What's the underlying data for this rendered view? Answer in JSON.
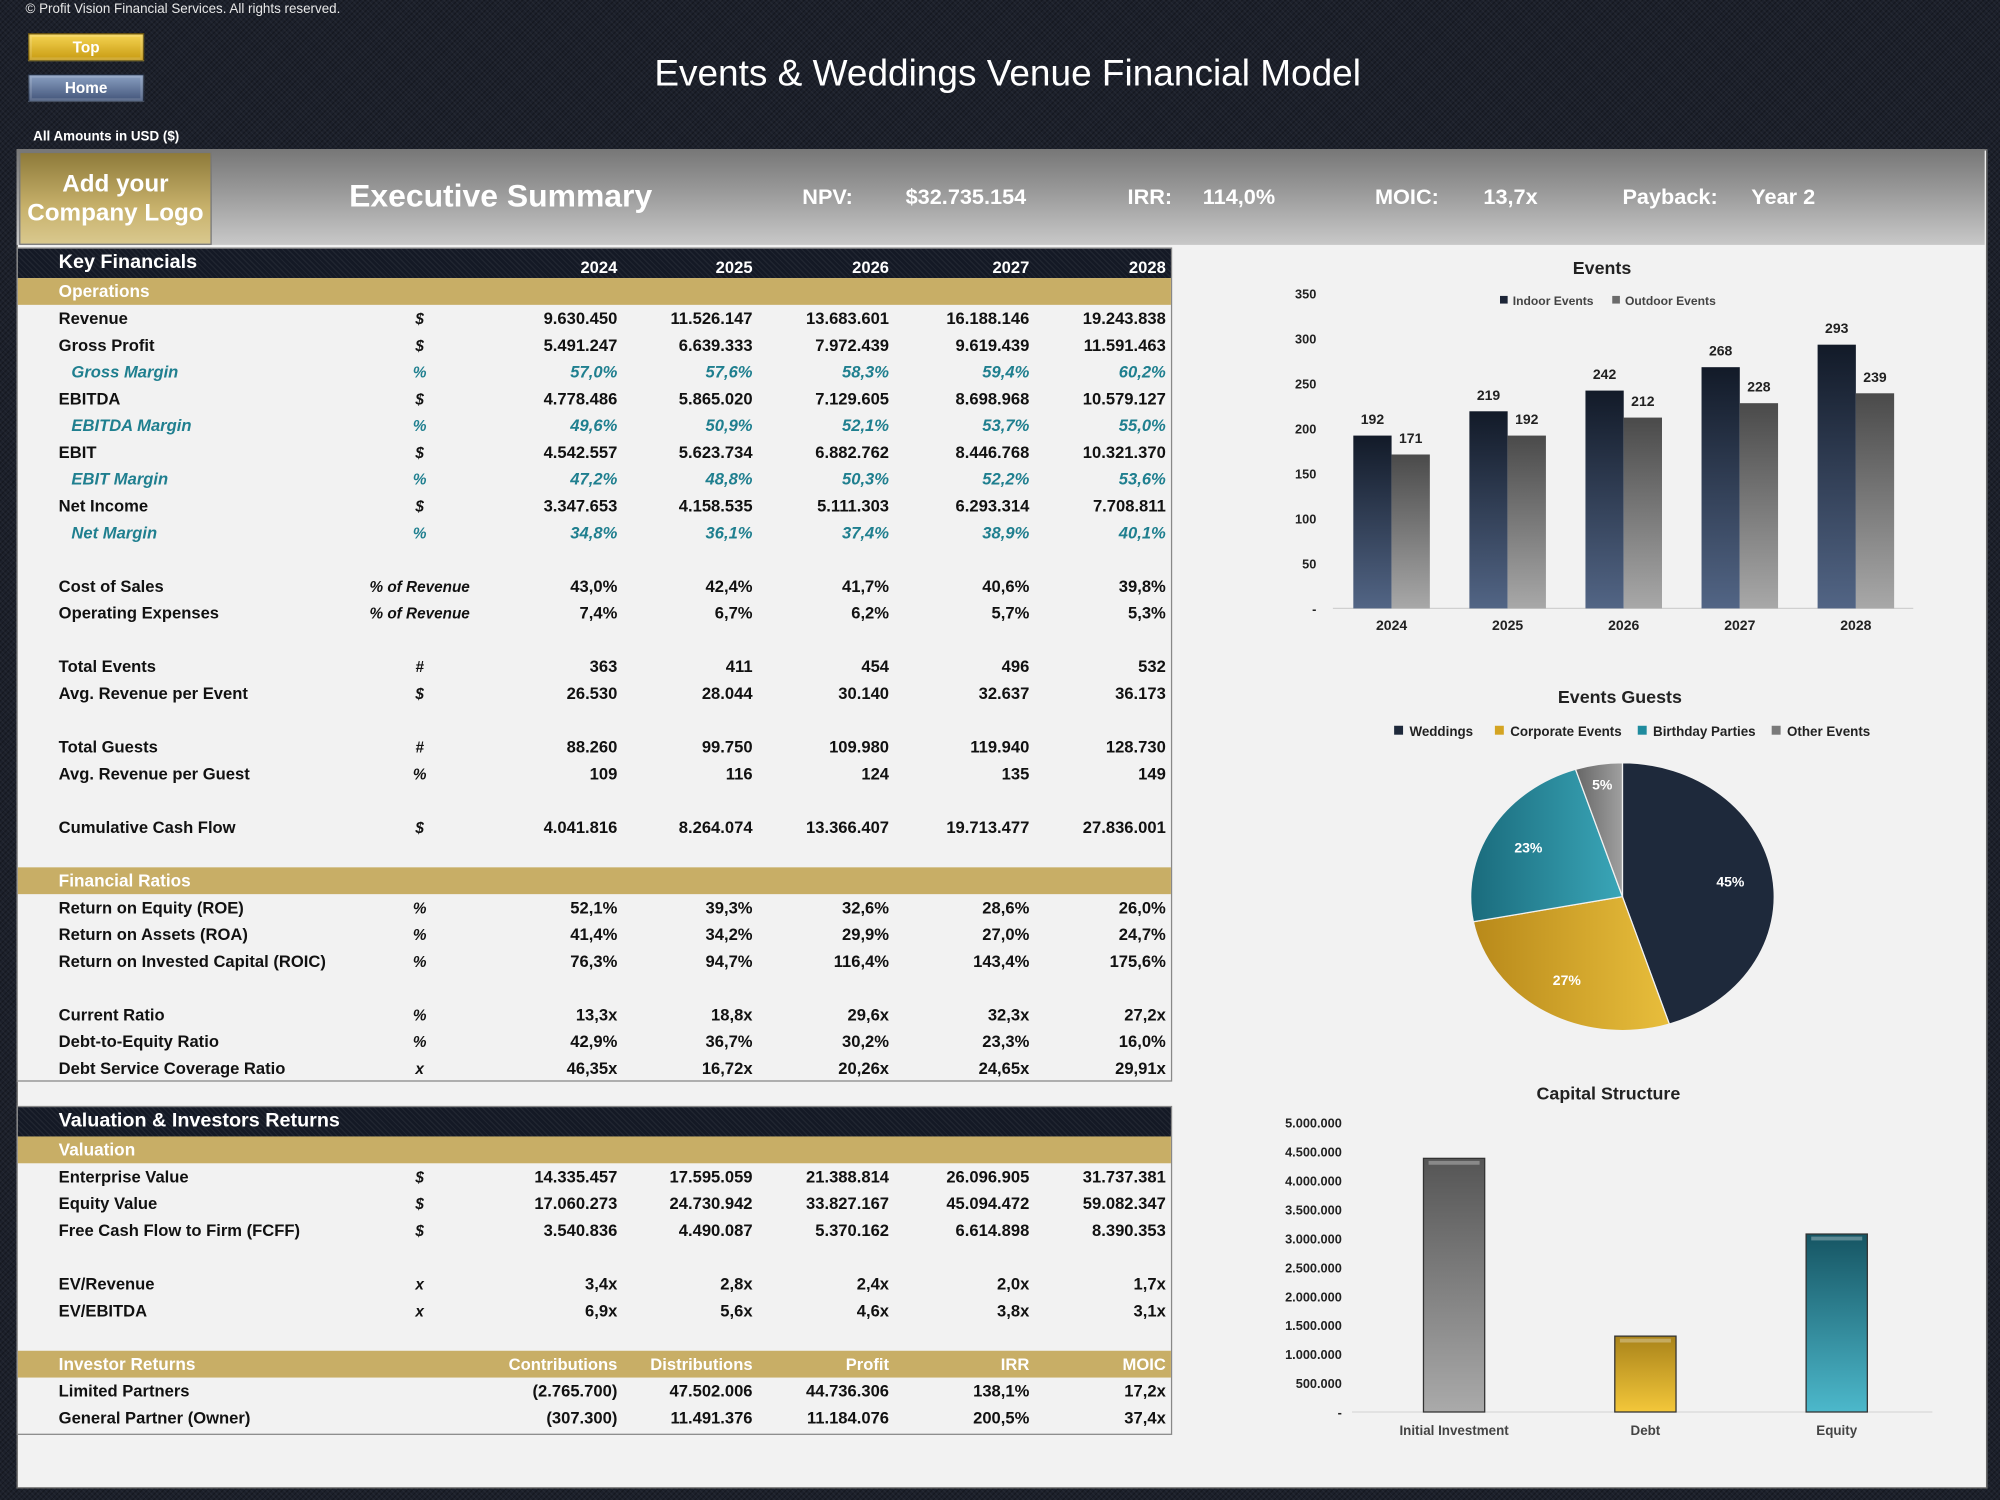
{
  "header": {
    "copyright": "© Profit Vision Financial Services. All rights reserved.",
    "title": "Events & Weddings Venue Financial Model",
    "currency_note": "All Amounts in  USD ($)",
    "buttons": {
      "top": "Top",
      "home": "Home"
    }
  },
  "banner": {
    "logo": "Add your Company Logo",
    "title": "Executive Summary",
    "metrics": [
      {
        "label": "NPV:",
        "value": "$32.735.154"
      },
      {
        "label": "IRR:",
        "value": "114,0%"
      },
      {
        "label": "MOIC:",
        "value": "13,7x"
      },
      {
        "label": "Payback:",
        "value": "Year 2"
      }
    ]
  },
  "key_financials": {
    "title": "Key Financials",
    "columns": [
      "2024",
      "2025",
      "2026",
      "2027",
      "2028"
    ],
    "sections": [
      {
        "title": "Operations",
        "groups": [
          [
            {
              "label": "Revenue",
              "unit": "$",
              "values": [
                "9.630.450",
                "11.526.147",
                "13.683.601",
                "16.188.146",
                "19.243.838"
              ]
            },
            {
              "label": "Gross Profit",
              "unit": "$",
              "values": [
                "5.491.247",
                "6.639.333",
                "7.972.439",
                "9.619.439",
                "11.591.463"
              ]
            },
            {
              "label": "Gross Margin",
              "unit": "%",
              "style": "margin",
              "values": [
                "57,0%",
                "57,6%",
                "58,3%",
                "59,4%",
                "60,2%"
              ]
            },
            {
              "label": "EBITDA",
              "unit": "$",
              "values": [
                "4.778.486",
                "5.865.020",
                "7.129.605",
                "8.698.968",
                "10.579.127"
              ]
            },
            {
              "label": "EBITDA Margin",
              "unit": "%",
              "style": "margin",
              "values": [
                "49,6%",
                "50,9%",
                "52,1%",
                "53,7%",
                "55,0%"
              ]
            },
            {
              "label": "EBIT",
              "unit": "$",
              "values": [
                "4.542.557",
                "5.623.734",
                "6.882.762",
                "8.446.768",
                "10.321.370"
              ]
            },
            {
              "label": "EBIT Margin",
              "unit": "%",
              "style": "margin",
              "values": [
                "47,2%",
                "48,8%",
                "50,3%",
                "52,2%",
                "53,6%"
              ]
            },
            {
              "label": "Net Income",
              "unit": "$",
              "values": [
                "3.347.653",
                "4.158.535",
                "5.111.303",
                "6.293.314",
                "7.708.811"
              ]
            },
            {
              "label": "Net Margin",
              "unit": "%",
              "style": "margin",
              "values": [
                "34,8%",
                "36,1%",
                "37,4%",
                "38,9%",
                "40,1%"
              ]
            }
          ],
          [
            {
              "label": "Cost of Sales",
              "unit": "% of Revenue",
              "values": [
                "43,0%",
                "42,4%",
                "41,7%",
                "40,6%",
                "39,8%"
              ]
            },
            {
              "label": "Operating Expenses",
              "unit": "% of Revenue",
              "values": [
                "7,4%",
                "6,7%",
                "6,2%",
                "5,7%",
                "5,3%"
              ]
            }
          ],
          [
            {
              "label": "Total Events",
              "unit": "#",
              "values": [
                "363",
                "411",
                "454",
                "496",
                "532"
              ]
            },
            {
              "label": "Avg. Revenue per Event",
              "unit": "$",
              "values": [
                "26.530",
                "28.044",
                "30.140",
                "32.637",
                "36.173"
              ]
            }
          ],
          [
            {
              "label": "Total Guests",
              "unit": "#",
              "values": [
                "88.260",
                "99.750",
                "109.980",
                "119.940",
                "128.730"
              ]
            },
            {
              "label": "Avg. Revenue per Guest",
              "unit": "%",
              "values": [
                "109",
                "116",
                "124",
                "135",
                "149"
              ]
            }
          ],
          [
            {
              "label": "Cumulative Cash Flow",
              "unit": "$",
              "values": [
                "4.041.816",
                "8.264.074",
                "13.366.407",
                "19.713.477",
                "27.836.001"
              ]
            }
          ]
        ]
      },
      {
        "title": "Financial Ratios",
        "groups": [
          [
            {
              "label": "Return on Equity (ROE)",
              "unit": "%",
              "values": [
                "52,1%",
                "39,3%",
                "32,6%",
                "28,6%",
                "26,0%"
              ]
            },
            {
              "label": "Return on Assets (ROA)",
              "unit": "%",
              "values": [
                "41,4%",
                "34,2%",
                "29,9%",
                "27,0%",
                "24,7%"
              ]
            },
            {
              "label": "Return on Invested Capital (ROIC)",
              "unit": "%",
              "values": [
                "76,3%",
                "94,7%",
                "116,4%",
                "143,4%",
                "175,6%"
              ]
            }
          ],
          [
            {
              "label": "Current Ratio",
              "unit": "%",
              "values": [
                "13,3x",
                "18,8x",
                "29,6x",
                "32,3x",
                "27,2x"
              ]
            },
            {
              "label": "Debt-to-Equity Ratio",
              "unit": "%",
              "values": [
                "42,9%",
                "36,7%",
                "30,2%",
                "23,3%",
                "16,0%"
              ]
            },
            {
              "label": "Debt Service Coverage Ratio",
              "unit": "x",
              "values": [
                "46,35x",
                "16,72x",
                "20,26x",
                "24,65x",
                "29,91x"
              ]
            }
          ]
        ]
      }
    ]
  },
  "valuation_panel": {
    "title": "Valuation & Investors Returns",
    "sections": [
      {
        "title": "Valuation",
        "groups": [
          [
            {
              "label": "Enterprise Value",
              "unit": "$",
              "values": [
                "14.335.457",
                "17.595.059",
                "21.388.814",
                "26.096.905",
                "31.737.381"
              ]
            },
            {
              "label": "Equity Value",
              "unit": "$",
              "values": [
                "17.060.273",
                "24.730.942",
                "33.827.167",
                "45.094.472",
                "59.082.347"
              ]
            },
            {
              "label": "Free Cash Flow to Firm (FCFF)",
              "unit": "$",
              "values": [
                "3.540.836",
                "4.490.087",
                "5.370.162",
                "6.614.898",
                "8.390.353"
              ]
            }
          ],
          [
            {
              "label": "EV/Revenue",
              "unit": "x",
              "values": [
                "3,4x",
                "2,8x",
                "2,4x",
                "2,0x",
                "1,7x"
              ]
            },
            {
              "label": "EV/EBITDA",
              "unit": "x",
              "values": [
                "6,9x",
                "5,6x",
                "4,6x",
                "3,8x",
                "3,1x"
              ]
            }
          ]
        ]
      },
      {
        "title": "Investor Returns",
        "columns": [
          "Contributions",
          "Distributions",
          "Profit",
          "IRR",
          "MOIC"
        ],
        "groups": [
          [
            {
              "label": "Limited Partners",
              "unit": "",
              "values": [
                "(2.765.700)",
                "47.502.006",
                "44.736.306",
                "138,1%",
                "17,2x"
              ]
            },
            {
              "label": "General Partner (Owner)",
              "unit": "",
              "values": [
                "(307.300)",
                "11.491.376",
                "11.184.076",
                "200,5%",
                "37,4x"
              ]
            }
          ]
        ]
      }
    ]
  },
  "chart_data": [
    {
      "type": "bar",
      "title": "Events",
      "categories": [
        "2024",
        "2025",
        "2026",
        "2027",
        "2028"
      ],
      "series": [
        {
          "name": "Indoor Events",
          "values": [
            192,
            219,
            242,
            268,
            293
          ],
          "color": "#1c2537"
        },
        {
          "name": "Outdoor Events",
          "values": [
            171,
            192,
            212,
            228,
            239
          ],
          "color": "#6b6b6b"
        }
      ],
      "yticks": [
        "-",
        "50",
        "100",
        "150",
        "200",
        "250",
        "300",
        "350"
      ],
      "ylim": [
        0,
        350
      ],
      "legend": "top",
      "grid": false
    },
    {
      "type": "pie",
      "title": "Events Guests",
      "labels": [
        "Weddings",
        "Corporate Events",
        "Birthday Parties",
        "Other Events"
      ],
      "values": [
        45,
        27,
        23,
        5
      ],
      "value_labels": [
        "45%",
        "27%",
        "23%",
        "5%"
      ],
      "colors": [
        "#1e293b",
        "#d4a422",
        "#1f8b9e",
        "#7a7a7a"
      ],
      "legend": "top"
    },
    {
      "type": "bar",
      "title": "Capital Structure",
      "categories": [
        "Initial Investment",
        "Debt",
        "Equity"
      ],
      "values": [
        4380000,
        1310000,
        3073000
      ],
      "colors": [
        "#7a7a7a",
        "#d4a422",
        "#1f8b9e"
      ],
      "yticks": [
        "-",
        "500.000",
        "1.000.000",
        "1.500.000",
        "2.000.000",
        "2.500.000",
        "3.000.000",
        "3.500.000",
        "4.000.000",
        "4.500.000",
        "5.000.000"
      ],
      "ylim": [
        0,
        5000000
      ],
      "grid": false
    }
  ],
  "colors": {
    "gold": "#c8ae66",
    "dark": "#141925",
    "teal_text": "#1f7f8f",
    "background": "#f2f2f2"
  }
}
